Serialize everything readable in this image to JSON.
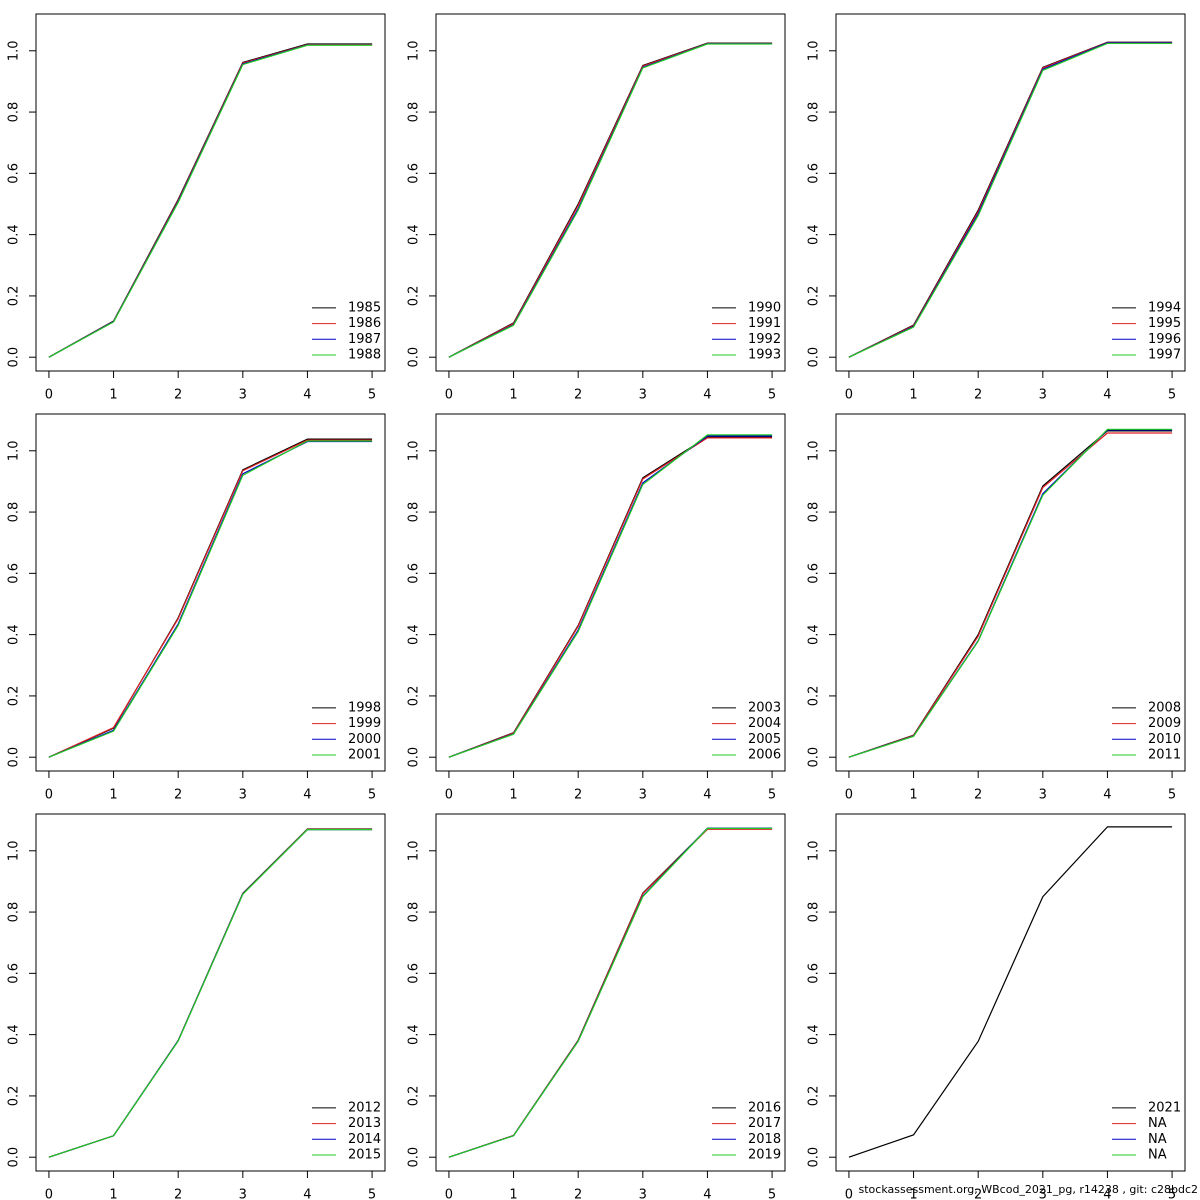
{
  "chart_data": [
    {
      "type": "line",
      "x": [
        0,
        1,
        2,
        3,
        4,
        5
      ],
      "xlim": [
        -0.2,
        5.2
      ],
      "xticks": [
        0,
        1,
        2,
        3,
        4,
        5
      ],
      "ylim": [
        -0.045,
        1.12
      ],
      "yticks": [
        {
          "value": 0,
          "label": "0.0"
        },
        0.2,
        0.4,
        0.6,
        0.8,
        {
          "value": 1,
          "label": "1.0"
        }
      ],
      "legend": "bottomright",
      "series": [
        {
          "name": "1985",
          "color": "#000000",
          "values": [
            0,
            0.118,
            0.515,
            0.962,
            1.022,
            1.022
          ]
        },
        {
          "name": "1986",
          "color": "#df2020",
          "values": [
            0,
            0.117,
            0.512,
            0.96,
            1.02,
            1.02
          ]
        },
        {
          "name": "1987",
          "color": "#0000cc",
          "values": [
            0,
            0.116,
            0.508,
            0.957,
            1.019,
            1.019
          ]
        },
        {
          "name": "1988",
          "color": "#22cc22",
          "values": [
            0,
            0.115,
            0.505,
            0.955,
            1.018,
            1.018
          ]
        }
      ]
    },
    {
      "type": "line",
      "x": [
        0,
        1,
        2,
        3,
        4,
        5
      ],
      "xlim": [
        -0.2,
        5.2
      ],
      "xticks": [
        0,
        1,
        2,
        3,
        4,
        5
      ],
      "ylim": [
        -0.045,
        1.12
      ],
      "yticks": [
        {
          "value": 0,
          "label": "0.0"
        },
        0.2,
        0.4,
        0.6,
        0.8,
        {
          "value": 1,
          "label": "1.0"
        }
      ],
      "legend": "bottomright",
      "series": [
        {
          "name": "1990",
          "color": "#000000",
          "values": [
            0,
            0.112,
            0.5,
            0.952,
            1.025,
            1.025
          ]
        },
        {
          "name": "1991",
          "color": "#df2020",
          "values": [
            0,
            0.11,
            0.495,
            0.95,
            1.024,
            1.024
          ]
        },
        {
          "name": "1992",
          "color": "#0000cc",
          "values": [
            0,
            0.106,
            0.485,
            0.946,
            1.023,
            1.023
          ]
        },
        {
          "name": "1993",
          "color": "#22cc22",
          "values": [
            0,
            0.104,
            0.48,
            0.944,
            1.022,
            1.022
          ]
        }
      ]
    },
    {
      "type": "line",
      "x": [
        0,
        1,
        2,
        3,
        4,
        5
      ],
      "xlim": [
        -0.2,
        5.2
      ],
      "xticks": [
        0,
        1,
        2,
        3,
        4,
        5
      ],
      "ylim": [
        -0.045,
        1.12
      ],
      "yticks": [
        {
          "value": 0,
          "label": "0.0"
        },
        0.2,
        0.4,
        0.6,
        0.8,
        {
          "value": 1,
          "label": "1.0"
        }
      ],
      "legend": "bottomright",
      "series": [
        {
          "name": "1994",
          "color": "#000000",
          "values": [
            0,
            0.105,
            0.48,
            0.946,
            1.028,
            1.028
          ]
        },
        {
          "name": "1995",
          "color": "#df2020",
          "values": [
            0,
            0.103,
            0.475,
            0.944,
            1.027,
            1.027
          ]
        },
        {
          "name": "1996",
          "color": "#0000cc",
          "values": [
            0,
            0.1,
            0.468,
            0.94,
            1.026,
            1.026
          ]
        },
        {
          "name": "1997",
          "color": "#22cc22",
          "values": [
            0,
            0.098,
            0.462,
            0.936,
            1.024,
            1.024
          ]
        }
      ]
    },
    {
      "type": "line",
      "x": [
        0,
        1,
        2,
        3,
        4,
        5
      ],
      "xlim": [
        -0.2,
        5.2
      ],
      "xticks": [
        0,
        1,
        2,
        3,
        4,
        5
      ],
      "ylim": [
        -0.045,
        1.12
      ],
      "yticks": [
        {
          "value": 0,
          "label": "0.0"
        },
        0.2,
        0.4,
        0.6,
        0.8,
        {
          "value": 1,
          "label": "1.0"
        }
      ],
      "legend": "bottomright",
      "series": [
        {
          "name": "1998",
          "color": "#000000",
          "values": [
            0,
            0.095,
            0.455,
            0.938,
            1.038,
            1.038
          ]
        },
        {
          "name": "1999",
          "color": "#df2020",
          "values": [
            0,
            0.097,
            0.452,
            0.935,
            1.035,
            1.035
          ]
        },
        {
          "name": "2000",
          "color": "#0000cc",
          "values": [
            0,
            0.088,
            0.435,
            0.925,
            1.03,
            1.03
          ]
        },
        {
          "name": "2001",
          "color": "#22cc22",
          "values": [
            0,
            0.085,
            0.43,
            0.92,
            1.032,
            1.032
          ]
        }
      ]
    },
    {
      "type": "line",
      "x": [
        0,
        1,
        2,
        3,
        4,
        5
      ],
      "xlim": [
        -0.2,
        5.2
      ],
      "xticks": [
        0,
        1,
        2,
        3,
        4,
        5
      ],
      "ylim": [
        -0.045,
        1.12
      ],
      "yticks": [
        {
          "value": 0,
          "label": "0.0"
        },
        0.2,
        0.4,
        0.6,
        0.8,
        {
          "value": 1,
          "label": "1.0"
        }
      ],
      "legend": "bottomright",
      "series": [
        {
          "name": "2003",
          "color": "#000000",
          "values": [
            0,
            0.08,
            0.43,
            0.912,
            1.045,
            1.045
          ]
        },
        {
          "name": "2004",
          "color": "#df2020",
          "values": [
            0,
            0.079,
            0.427,
            0.908,
            1.042,
            1.042
          ]
        },
        {
          "name": "2005",
          "color": "#0000cc",
          "values": [
            0,
            0.076,
            0.415,
            0.895,
            1.048,
            1.048
          ]
        },
        {
          "name": "2006",
          "color": "#22cc22",
          "values": [
            0,
            0.075,
            0.41,
            0.89,
            1.052,
            1.052
          ]
        }
      ]
    },
    {
      "type": "line",
      "x": [
        0,
        1,
        2,
        3,
        4,
        5
      ],
      "xlim": [
        -0.2,
        5.2
      ],
      "xticks": [
        0,
        1,
        2,
        3,
        4,
        5
      ],
      "ylim": [
        -0.045,
        1.12
      ],
      "yticks": [
        {
          "value": 0,
          "label": "0.0"
        },
        0.2,
        0.4,
        0.6,
        0.8,
        {
          "value": 1,
          "label": "1.0"
        }
      ],
      "legend": "bottomright",
      "series": [
        {
          "name": "2008",
          "color": "#000000",
          "values": [
            0,
            0.072,
            0.4,
            0.885,
            1.065,
            1.065
          ]
        },
        {
          "name": "2009",
          "color": "#df2020",
          "values": [
            0,
            0.071,
            0.395,
            0.88,
            1.058,
            1.058
          ]
        },
        {
          "name": "2010",
          "color": "#0000cc",
          "values": [
            0,
            0.069,
            0.38,
            0.86,
            1.068,
            1.068
          ]
        },
        {
          "name": "2011",
          "color": "#22cc22",
          "values": [
            0,
            0.068,
            0.378,
            0.855,
            1.07,
            1.07
          ]
        }
      ]
    },
    {
      "type": "line",
      "x": [
        0,
        1,
        2,
        3,
        4,
        5
      ],
      "xlim": [
        -0.2,
        5.2
      ],
      "xticks": [
        0,
        1,
        2,
        3,
        4,
        5
      ],
      "ylim": [
        -0.045,
        1.12
      ],
      "yticks": [
        {
          "value": 0,
          "label": "0.0"
        },
        0.2,
        0.4,
        0.6,
        0.8,
        {
          "value": 1,
          "label": "1.0"
        }
      ],
      "legend": "bottomright",
      "series": [
        {
          "name": "2012",
          "color": "#000000",
          "values": [
            0,
            0.07,
            0.381,
            0.861,
            1.071,
            1.071
          ]
        },
        {
          "name": "2013",
          "color": "#df2020",
          "values": [
            0,
            0.07,
            0.38,
            0.86,
            1.07,
            1.07
          ]
        },
        {
          "name": "2014",
          "color": "#0000cc",
          "values": [
            0,
            0.07,
            0.38,
            0.859,
            1.069,
            1.069
          ]
        },
        {
          "name": "2015",
          "color": "#22cc22",
          "values": [
            0,
            0.07,
            0.379,
            0.858,
            1.069,
            1.069
          ]
        }
      ]
    },
    {
      "type": "line",
      "x": [
        0,
        1,
        2,
        3,
        4,
        5
      ],
      "xlim": [
        -0.2,
        5.2
      ],
      "xticks": [
        0,
        1,
        2,
        3,
        4,
        5
      ],
      "ylim": [
        -0.045,
        1.12
      ],
      "yticks": [
        {
          "value": 0,
          "label": "0.0"
        },
        0.2,
        0.4,
        0.6,
        0.8,
        {
          "value": 1,
          "label": "1.0"
        }
      ],
      "legend": "bottomright",
      "series": [
        {
          "name": "2016",
          "color": "#000000",
          "values": [
            0,
            0.071,
            0.382,
            0.862,
            1.072,
            1.072
          ]
        },
        {
          "name": "2017",
          "color": "#df2020",
          "values": [
            0,
            0.071,
            0.381,
            0.86,
            1.07,
            1.07
          ]
        },
        {
          "name": "2018",
          "color": "#0000cc",
          "values": [
            0,
            0.07,
            0.379,
            0.852,
            1.074,
            1.074
          ]
        },
        {
          "name": "2019",
          "color": "#22cc22",
          "values": [
            0,
            0.07,
            0.378,
            0.85,
            1.073,
            1.073
          ]
        }
      ]
    },
    {
      "type": "line",
      "x": [
        0,
        1,
        2,
        3,
        4,
        5
      ],
      "xlim": [
        -0.2,
        5.2
      ],
      "xticks": [
        0,
        1,
        2,
        3,
        4,
        5
      ],
      "ylim": [
        -0.045,
        1.12
      ],
      "yticks": [
        {
          "value": 0,
          "label": "0.0"
        },
        0.2,
        0.4,
        0.6,
        0.8,
        {
          "value": 1,
          "label": "1.0"
        }
      ],
      "legend": "bottomright",
      "series": [
        {
          "name": "2021",
          "color": "#000000",
          "values": [
            0,
            0.073,
            0.378,
            0.85,
            1.078,
            1.078
          ]
        },
        {
          "name": "NA",
          "color": "#df2020",
          "values": [
            null,
            null,
            null,
            null,
            null,
            null
          ]
        },
        {
          "name": "NA",
          "color": "#0000cc",
          "values": [
            null,
            null,
            null,
            null,
            null,
            null
          ]
        },
        {
          "name": "NA",
          "color": "#22cc22",
          "values": [
            null,
            null,
            null,
            null,
            null,
            null
          ]
        }
      ]
    }
  ],
  "footer": "stockassessment.org, WBcod_2021_pg, r14238 , git: c28bdc2"
}
